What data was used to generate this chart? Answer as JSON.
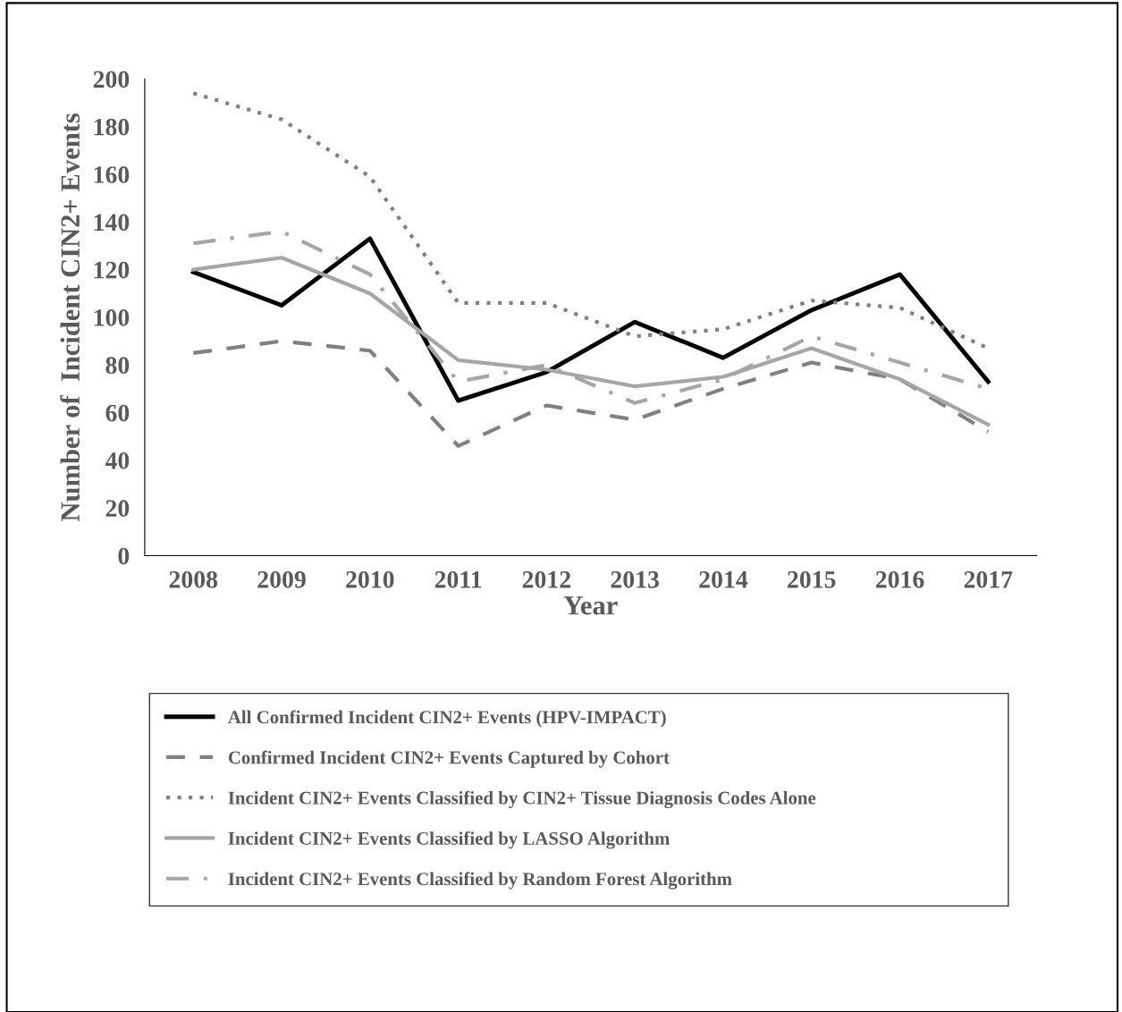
{
  "chart_data": {
    "type": "line",
    "xlabel": "Year",
    "ylabel": "Number of  Incident CIN2+ Events",
    "categories": [
      "2008",
      "2009",
      "2010",
      "2011",
      "2012",
      "2013",
      "2014",
      "2015",
      "2016",
      "2017"
    ],
    "ylim": [
      0,
      200
    ],
    "yticks": [
      0,
      20,
      40,
      60,
      80,
      100,
      120,
      140,
      160,
      180,
      200
    ],
    "grid": false,
    "legend": "bottom",
    "series": [
      {
        "name": "All Confirmed Incident CIN2+ Events (HPV-IMPACT)",
        "color": "#000000",
        "line_style": "solid",
        "values": [
          119,
          105,
          133,
          65,
          77,
          98,
          83,
          103,
          118,
          73
        ]
      },
      {
        "name": "Confirmed Incident CIN2+ Events Captured by Cohort",
        "color": "#808080",
        "line_style": "dashed",
        "values": [
          85,
          90,
          86,
          46,
          63,
          57,
          70,
          81,
          74,
          52
        ]
      },
      {
        "name": "Incident CIN2+ Events Classified by CIN2+ Tissue Diagnosis Codes Alone",
        "color": "#808080",
        "line_style": "dotted",
        "values": [
          194,
          183,
          159,
          106,
          106,
          92,
          95,
          107,
          104,
          87
        ]
      },
      {
        "name": "Incident CIN2+ Events Classified by LASSO Algorithm",
        "color": "#a6a6a6",
        "line_style": "solid",
        "values": [
          120,
          125,
          110,
          82,
          78,
          71,
          75,
          87,
          74,
          55
        ]
      },
      {
        "name": "Incident CIN2+ Events Classified by Random Forest Algorithm",
        "color": "#a6a6a6",
        "line_style": "dashdot",
        "values": [
          131,
          136,
          118,
          73,
          80,
          64,
          74,
          92,
          81,
          70
        ]
      }
    ]
  }
}
